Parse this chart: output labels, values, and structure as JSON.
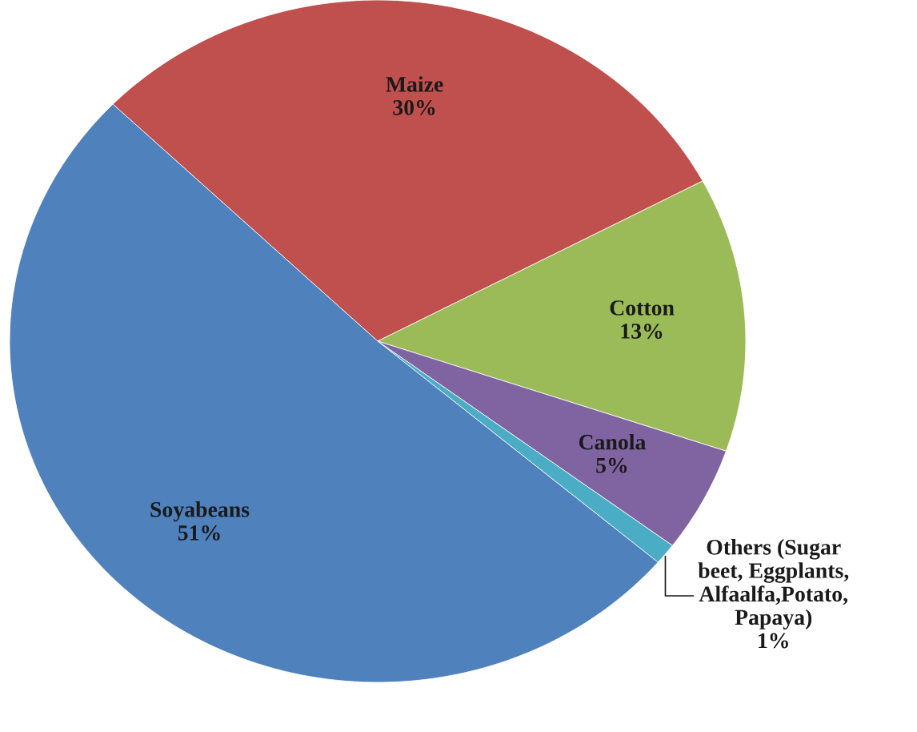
{
  "chart_data": {
    "type": "pie",
    "categories": [
      "Maize",
      "Cotton",
      "Canola",
      "Others (Sugar\nbeet, Eggplants,\nAlfaalfa,Potato,\nPapaya)",
      "Soyabeans"
    ],
    "values": [
      30,
      13,
      5,
      1,
      51
    ],
    "value_labels": [
      "30%",
      "13%",
      "5%",
      "1%",
      "51%"
    ],
    "colors": [
      "#c0504d",
      "#9bbb59",
      "#8064a2",
      "#4bacc6",
      "#4f81bd"
    ],
    "legend": false
  }
}
